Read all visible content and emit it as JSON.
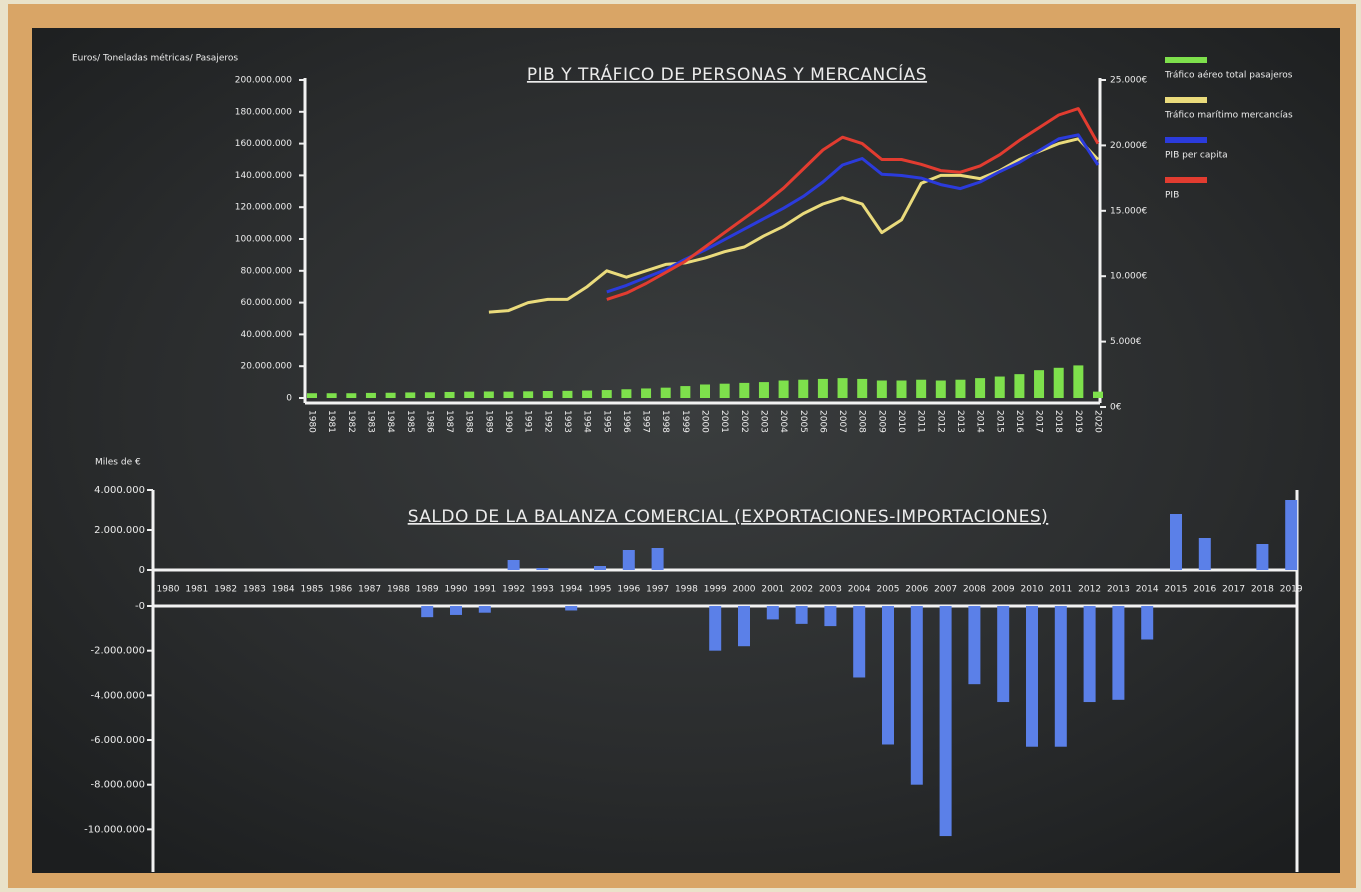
{
  "chart_data": [
    {
      "type": "combo",
      "title": "PIB Y TRÁFICO DE PERSONAS Y MERCANCÍAS",
      "y_label": "Euros/ Toneladas métricas/ Pasajeros",
      "categories": [
        "1980",
        "1981",
        "1982",
        "1983",
        "1984",
        "1985",
        "1986",
        "1987",
        "1988",
        "1989",
        "1990",
        "1991",
        "1992",
        "1993",
        "1994",
        "1995",
        "1996",
        "1997",
        "1998",
        "1999",
        "2000",
        "2001",
        "2002",
        "2003",
        "2004",
        "2005",
        "2006",
        "2007",
        "2008",
        "2009",
        "2010",
        "2011",
        "2012",
        "2013",
        "2014",
        "2015",
        "2016",
        "2017",
        "2018",
        "2019",
        "2020"
      ],
      "ylim": [
        0,
        200000000
      ],
      "yticks": [
        0,
        {
          "value": 20000000,
          "label": "20.000.000"
        },
        {
          "value": 40000000,
          "label": "40.000.000"
        },
        {
          "value": 60000000,
          "label": "60.000.000"
        },
        {
          "value": 80000000,
          "label": "80.000.000"
        },
        {
          "value": 100000000,
          "label": "100.000.000"
        },
        {
          "value": 120000000,
          "label": "120.000.000"
        },
        {
          "value": 140000000,
          "label": "140.000.000"
        },
        {
          "value": 160000000,
          "label": "160.000.000"
        },
        {
          "value": 180000000,
          "label": "180.000.000"
        },
        {
          "value": 200000000,
          "label": "200.000.000"
        }
      ],
      "y2lim": [
        0,
        25000
      ],
      "y2ticks": [
        {
          "value": 0,
          "label": "0€"
        },
        {
          "value": 5000,
          "label": "5.000€"
        },
        {
          "value": 10000,
          "label": "10.000€"
        },
        {
          "value": 15000,
          "label": "15.000€"
        },
        {
          "value": 20000,
          "label": "20.000€"
        },
        {
          "value": 25000,
          "label": "25.000€"
        }
      ],
      "series": [
        {
          "name": "Tráfico aéreo total pasajeros",
          "type": "bar",
          "color": "#7ee04c",
          "values": [
            3000000,
            3000000,
            3000000,
            3200000,
            3300000,
            3500000,
            3600000,
            3800000,
            4000000,
            4100000,
            4000000,
            4200000,
            4400000,
            4500000,
            4700000,
            5000000,
            5500000,
            6000000,
            6500000,
            7500000,
            8500000,
            9000000,
            9500000,
            10000000,
            11000000,
            11500000,
            12000000,
            12500000,
            12000000,
            11000000,
            11000000,
            11500000,
            11000000,
            11500000,
            12500000,
            13500000,
            15000000,
            17500000,
            19000000,
            20500000,
            4000000
          ]
        },
        {
          "name": "Tráfico marítimo mercancías",
          "type": "line",
          "color": "#eadb7c",
          "values": [
            null,
            null,
            null,
            null,
            null,
            null,
            null,
            null,
            null,
            54000000,
            55000000,
            60000000,
            62000000,
            62000000,
            70000000,
            80000000,
            76000000,
            80000000,
            84000000,
            85000000,
            88000000,
            92000000,
            95000000,
            102000000,
            108000000,
            116000000,
            122000000,
            126000000,
            122000000,
            104000000,
            112000000,
            135000000,
            140000000,
            140000000,
            138000000,
            143000000,
            150000000,
            155000000,
            160000000,
            163000000,
            150000000
          ]
        },
        {
          "name": "PIB per capita",
          "type": "line",
          "axis": "y2",
          "color": "#2b3bdc",
          "values": [
            null,
            null,
            null,
            null,
            null,
            null,
            null,
            null,
            null,
            null,
            null,
            null,
            null,
            null,
            null,
            8800,
            9300,
            9900,
            10500,
            11300,
            12000,
            12800,
            13600,
            14400,
            15200,
            16100,
            17200,
            18500,
            19000,
            17800,
            17700,
            17500,
            17000,
            16700,
            17200,
            18000,
            18700,
            19600,
            20500,
            20800,
            18500
          ]
        },
        {
          "name": "PIB",
          "type": "line",
          "color": "#e23c30",
          "values": [
            null,
            null,
            null,
            null,
            null,
            null,
            null,
            null,
            null,
            null,
            null,
            null,
            null,
            null,
            null,
            62000000,
            66000000,
            72000000,
            79000000,
            86000000,
            95000000,
            104000000,
            113000000,
            122000000,
            132000000,
            144000000,
            156000000,
            164000000,
            160000000,
            150000000,
            150000000,
            147000000,
            143000000,
            142000000,
            146000000,
            153000000,
            162000000,
            170000000,
            178000000,
            182000000,
            160000000
          ]
        }
      ]
    },
    {
      "type": "bar",
      "title": "SALDO DE LA BALANZA COMERCIAL (EXPORTACIONES-IMPORTACIONES)",
      "y_label": "Miles de €",
      "color": "#5b80e8",
      "categories": [
        "1980",
        "1981",
        "1982",
        "1983",
        "1984",
        "1985",
        "1986",
        "1987",
        "1988",
        "1989",
        "1990",
        "1991",
        "1992",
        "1993",
        "1994",
        "1995",
        "1996",
        "1997",
        "1998",
        "1999",
        "2000",
        "2001",
        "2002",
        "2003",
        "2004",
        "2005",
        "2006",
        "2007",
        "2008",
        "2009",
        "2010",
        "2011",
        "2012",
        "2013",
        "2014",
        "2015",
        "2016",
        "2017",
        "2018",
        "2019"
      ],
      "values": [
        0,
        0,
        0,
        0,
        0,
        0,
        0,
        0,
        0,
        -500000,
        -400000,
        -300000,
        500000,
        100000,
        -200000,
        200000,
        1000000,
        1100000,
        0,
        -2000000,
        -1800000,
        -600000,
        -800000,
        -900000,
        -3200000,
        -6200000,
        -8000000,
        -10300000,
        -3500000,
        -4300000,
        -6300000,
        -6300000,
        -4300000,
        -4200000,
        -1500000,
        2800000,
        1600000,
        0,
        1300000,
        3500000
      ],
      "ylim": [
        -10700000,
        4000000
      ],
      "yticks": [
        {
          "value": 4000000,
          "label": "4.000.000"
        },
        {
          "value": 2000000,
          "label": "2.000.000"
        },
        0,
        {
          "value": 0,
          "label": "-0"
        },
        {
          "value": -2000000,
          "label": "-2.000.000"
        },
        {
          "value": -4000000,
          "label": "-4.000.000"
        },
        {
          "value": -6000000,
          "label": "-6.000.000"
        },
        {
          "value": -8000000,
          "label": "-8.000.000"
        },
        {
          "value": -10000000,
          "label": "-10.000.000"
        }
      ]
    }
  ]
}
